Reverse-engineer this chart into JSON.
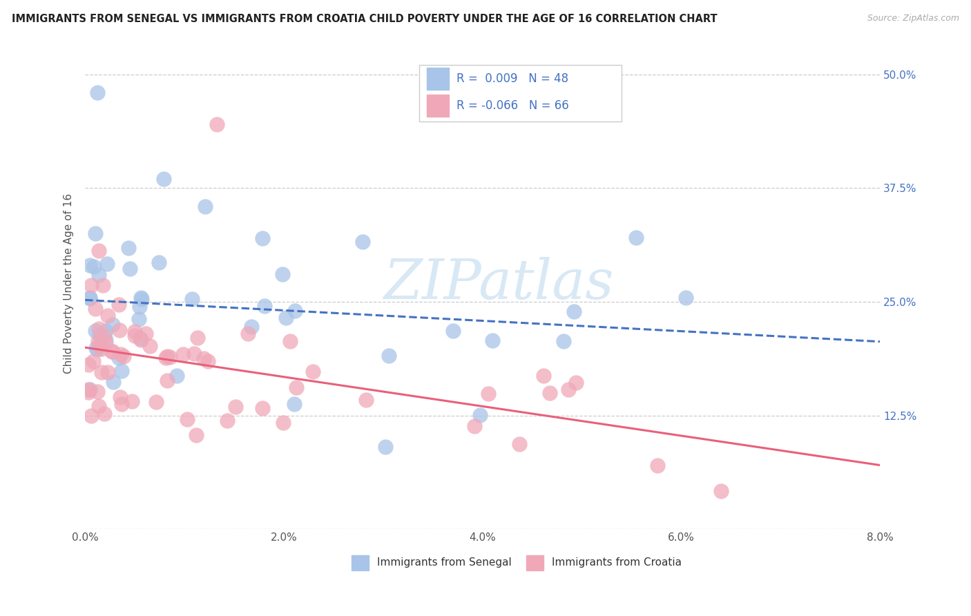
{
  "title": "IMMIGRANTS FROM SENEGAL VS IMMIGRANTS FROM CROATIA CHILD POVERTY UNDER THE AGE OF 16 CORRELATION CHART",
  "source": "Source: ZipAtlas.com",
  "ylabel": "Child Poverty Under the Age of 16",
  "xlim": [
    0.0,
    0.08
  ],
  "ylim": [
    0.0,
    0.54
  ],
  "yticks": [
    0.0,
    0.125,
    0.25,
    0.375,
    0.5
  ],
  "ytick_labels_right": [
    "",
    "12.5%",
    "25.0%",
    "37.5%",
    "50.0%"
  ],
  "xticks": [
    0.0,
    0.02,
    0.04,
    0.06,
    0.08
  ],
  "xtick_labels": [
    "0.0%",
    "2.0%",
    "4.0%",
    "6.0%",
    "8.0%"
  ],
  "senegal_color": "#a8c4e8",
  "croatia_color": "#f0a8b8",
  "senegal_R": 0.009,
  "senegal_N": 48,
  "croatia_R": -0.066,
  "croatia_N": 66,
  "senegal_line_color": "#4472c4",
  "croatia_line_color": "#e8607a",
  "watermark_color": "#d8e8f5",
  "legend_line1": "R =  0.009   N = 48",
  "legend_line2": "R = -0.066   N = 66",
  "bottom_label1": "Immigrants from Senegal",
  "bottom_label2": "Immigrants from Croatia"
}
